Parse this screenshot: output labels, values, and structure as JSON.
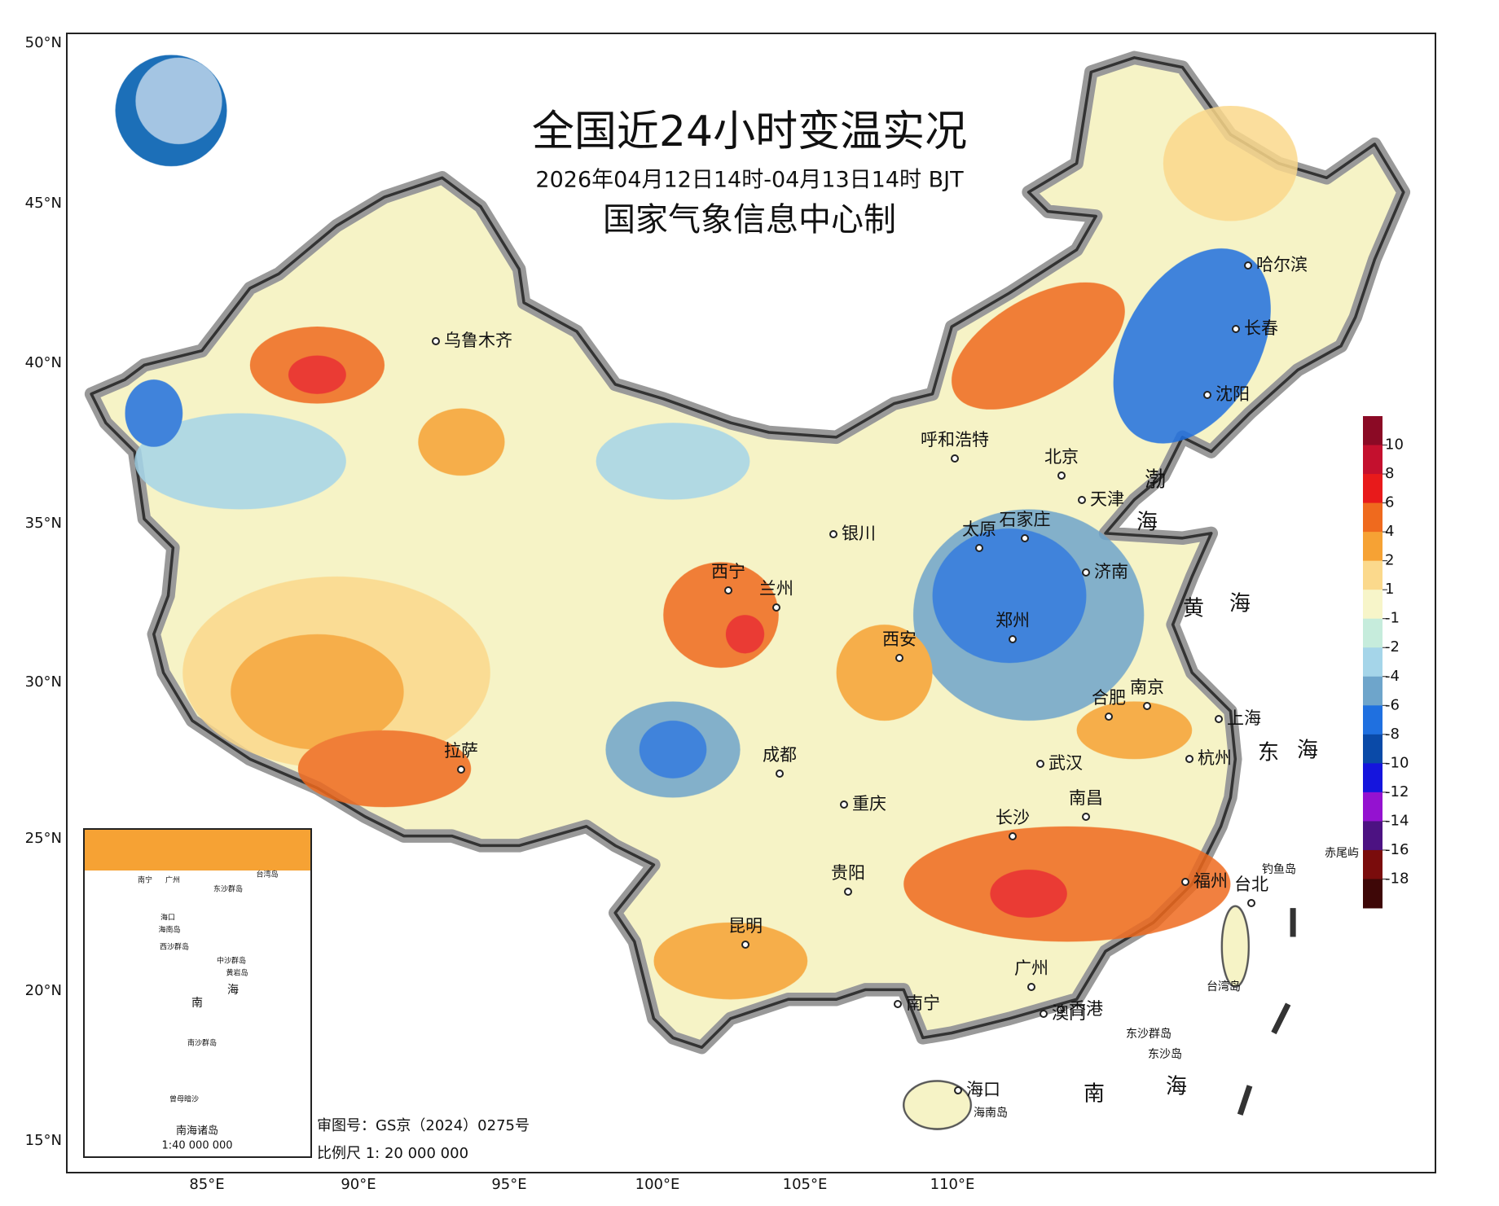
{
  "header": {
    "title": "全国近24小时变温实况",
    "subtitle": "2026年04月12日14时-04月13日14时 BJT",
    "credit": "国家气象信息中心制"
  },
  "lat_labels": [
    "50°N",
    "45°N",
    "40°N",
    "35°N",
    "30°N",
    "25°N",
    "20°N",
    "15°N"
  ],
  "lon_labels": [
    "85°E",
    "90°E",
    "95°E",
    "100°E",
    "105°E",
    "110°E"
  ],
  "cities": [
    "乌鲁木齐",
    "呼和浩特",
    "哈尔滨",
    "长春",
    "沈阳",
    "北京",
    "天津",
    "石家庄",
    "太原",
    "济南",
    "银川",
    "西宁",
    "兰州",
    "西安",
    "郑州",
    "合肥",
    "南京",
    "上海",
    "杭州",
    "武汉",
    "成都",
    "重庆",
    "拉萨",
    "南昌",
    "长沙",
    "福州",
    "贵阳",
    "昆明",
    "广州",
    "南宁",
    "香港",
    "澳门",
    "台北",
    "海口"
  ],
  "seas": [
    "渤",
    "海",
    "黄",
    "海",
    "东",
    "海",
    "南",
    "海"
  ],
  "islands": [
    "钓鱼岛",
    "赤尾屿",
    "台湾岛",
    "海南岛",
    "东沙群岛",
    "东沙岛"
  ],
  "inset": {
    "title": "南海诸岛",
    "scale": "1:40 000 000",
    "labels": [
      "南宁",
      "广州",
      "台湾岛",
      "东沙群岛",
      "海口",
      "海南岛",
      "西沙群岛",
      "中沙群岛",
      "黄岩岛",
      "南沙群岛",
      "曾母暗沙",
      "南",
      "海"
    ]
  },
  "footer": {
    "review": "审图号：GS京（2024）0275号",
    "scale": "比例尺 1: 20 000 000"
  },
  "legend": {
    "ticks": [
      10,
      8,
      6,
      4,
      2,
      1,
      -1,
      -2,
      -4,
      -6,
      -8,
      -10,
      -12,
      -14,
      -16,
      -18
    ],
    "colors": [
      "#8b0a25",
      "#c4102e",
      "#e81a1b",
      "#ef6a1e",
      "#f6a234",
      "#fbd98c",
      "#f7f5c9",
      "#c6ecdc",
      "#a5d5e9",
      "#6ea5cb",
      "#1f70e0",
      "#0a4aa8",
      "#1515dd",
      "#9412d0",
      "#4c1282",
      "#7a0c0c",
      "#3e0707"
    ]
  }
}
